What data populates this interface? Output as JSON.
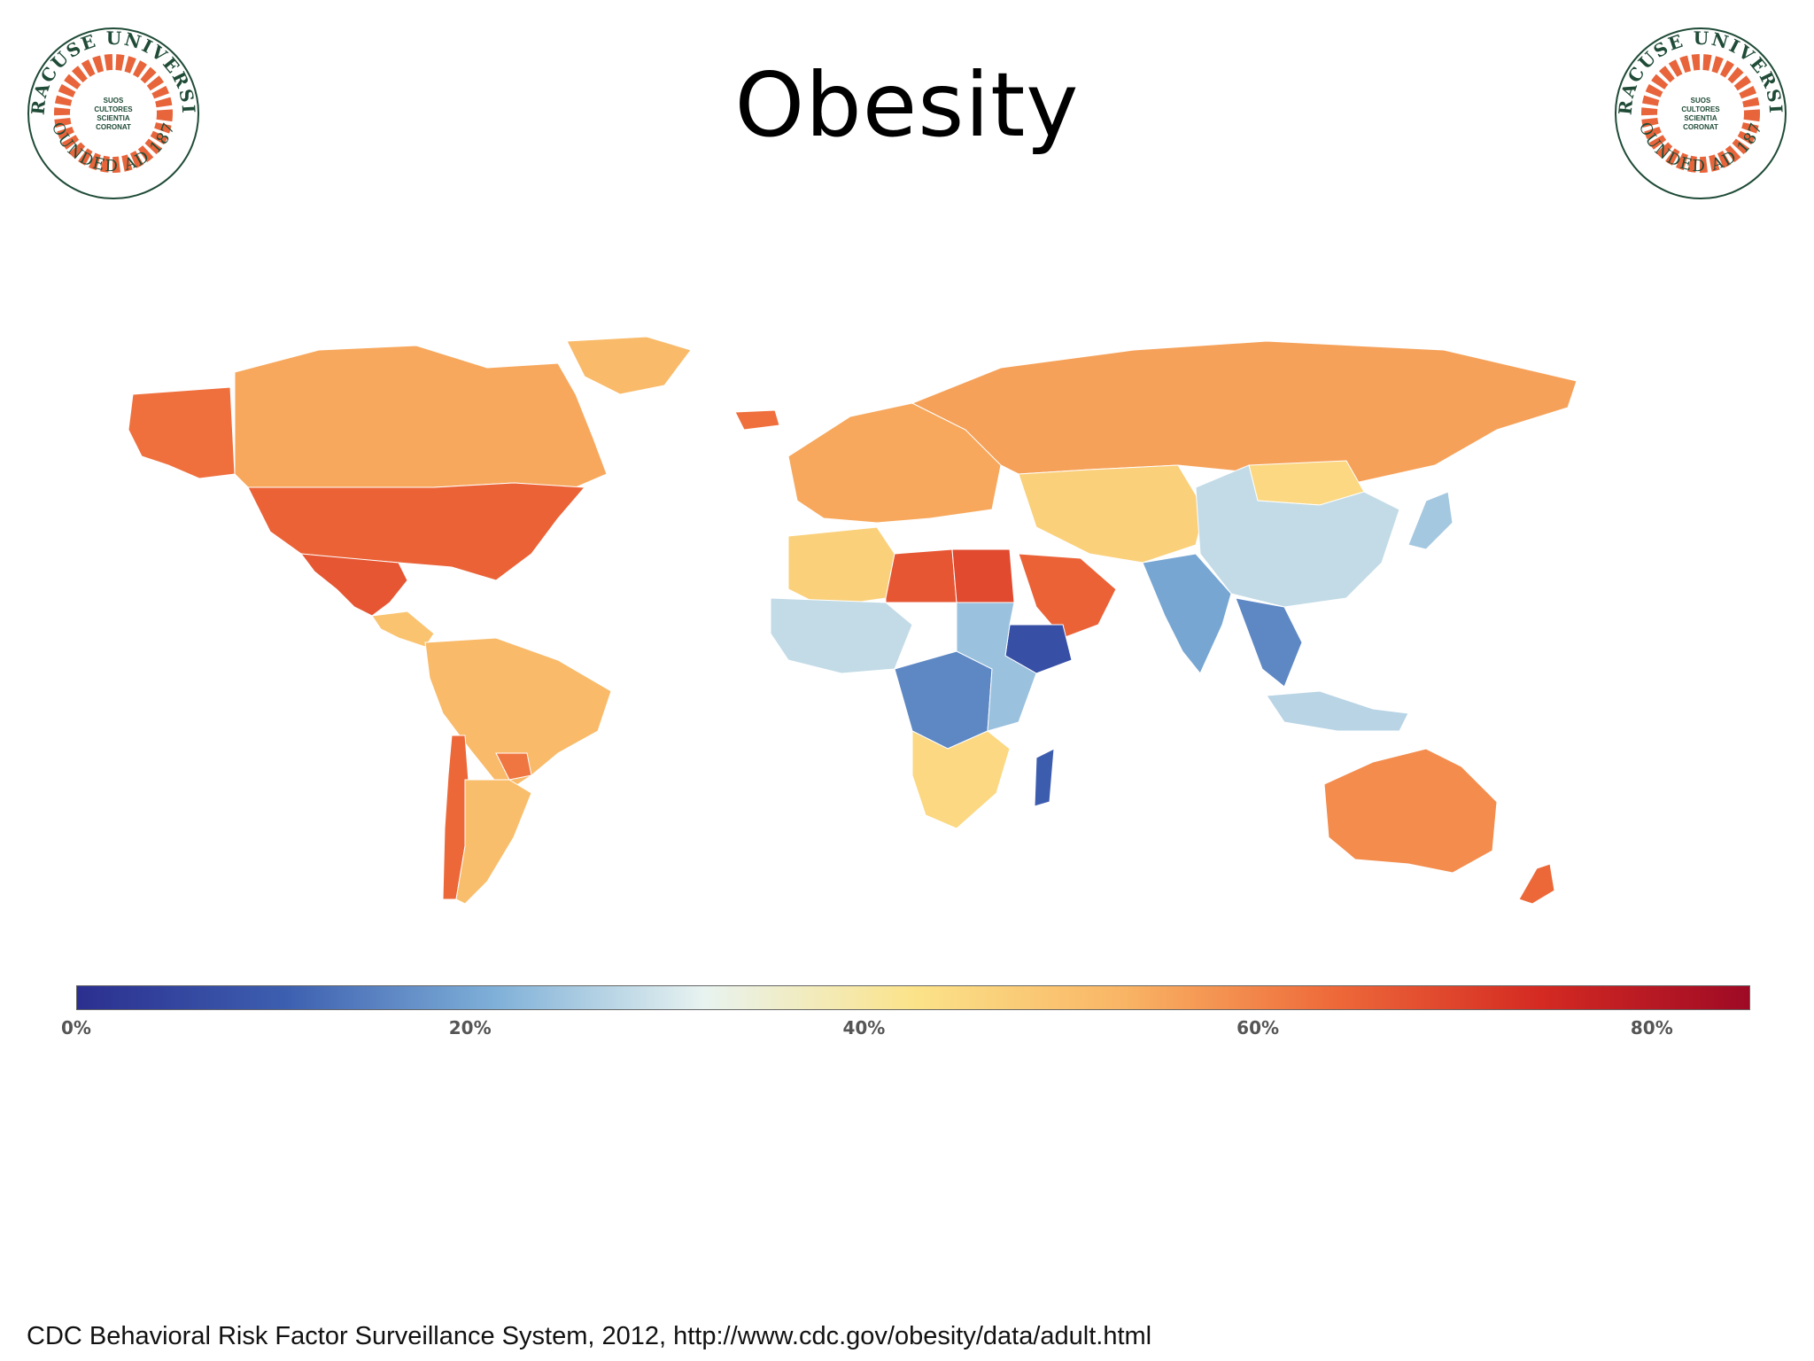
{
  "slide": {
    "title": "Obesity",
    "citation": "CDC Behavioral Risk Factor Surveillance System, 2012, http://www.cdc.gov/obesity/data/adult.html"
  },
  "seal": {
    "top_text": "SYRACUSE UNIVERSITY",
    "bottom_text": "FOUNDED AD 1870",
    "motto": [
      "SUOS",
      "CULTORES",
      "SCIENTIA",
      "CORONAT"
    ],
    "ring_color": "#e8643a",
    "text_color": "#1f4b37"
  },
  "colorbar": {
    "colors": [
      "#2b2f8f",
      "#3d5fb0",
      "#7fb0d8",
      "#e8f3f0",
      "#fbe38a",
      "#f9b565",
      "#ee6a3a",
      "#d42a22",
      "#9e0a25"
    ],
    "ticks": [
      {
        "label": "0%",
        "value": 0
      },
      {
        "label": "20%",
        "value": 20
      },
      {
        "label": "40%",
        "value": 40
      },
      {
        "label": "60%",
        "value": 60
      },
      {
        "label": "80%",
        "value": 80
      }
    ],
    "min": 0,
    "max": 85
  },
  "map": {
    "icon": "world-choropleth-map",
    "regions": [
      {
        "name": "Alaska",
        "value": 63
      },
      {
        "name": "Canada",
        "value": 55
      },
      {
        "name": "Greenland",
        "value": 52
      },
      {
        "name": "United States",
        "value": 65
      },
      {
        "name": "Mexico",
        "value": 67
      },
      {
        "name": "Central America",
        "value": 50
      },
      {
        "name": "South America",
        "value": 52
      },
      {
        "name": "Chile",
        "value": 64
      },
      {
        "name": "Paraguay",
        "value": 62
      },
      {
        "name": "Argentina",
        "value": 51
      },
      {
        "name": "Iceland",
        "value": 63
      },
      {
        "name": "Europe",
        "value": 55
      },
      {
        "name": "Russia",
        "value": 56
      },
      {
        "name": "North Africa West",
        "value": 47
      },
      {
        "name": "Libya",
        "value": 67
      },
      {
        "name": "Egypt",
        "value": 69
      },
      {
        "name": "Arabian Peninsula",
        "value": 65
      },
      {
        "name": "Central Asia",
        "value": 47
      },
      {
        "name": "Mongolia",
        "value": 45
      },
      {
        "name": "China",
        "value": 28
      },
      {
        "name": "India",
        "value": 20
      },
      {
        "name": "Southeast Asia",
        "value": 16
      },
      {
        "name": "Japan",
        "value": 25
      },
      {
        "name": "West Africa",
        "value": 28
      },
      {
        "name": "Central Africa",
        "value": 16
      },
      {
        "name": "Ethiopia",
        "value": 7
      },
      {
        "name": "East Africa",
        "value": 24
      },
      {
        "name": "Southern Africa",
        "value": 45
      },
      {
        "name": "Madagascar",
        "value": 10
      },
      {
        "name": "Indonesia",
        "value": 27
      },
      {
        "name": "Australia",
        "value": 59
      },
      {
        "name": "New Zealand",
        "value": 64
      }
    ]
  }
}
